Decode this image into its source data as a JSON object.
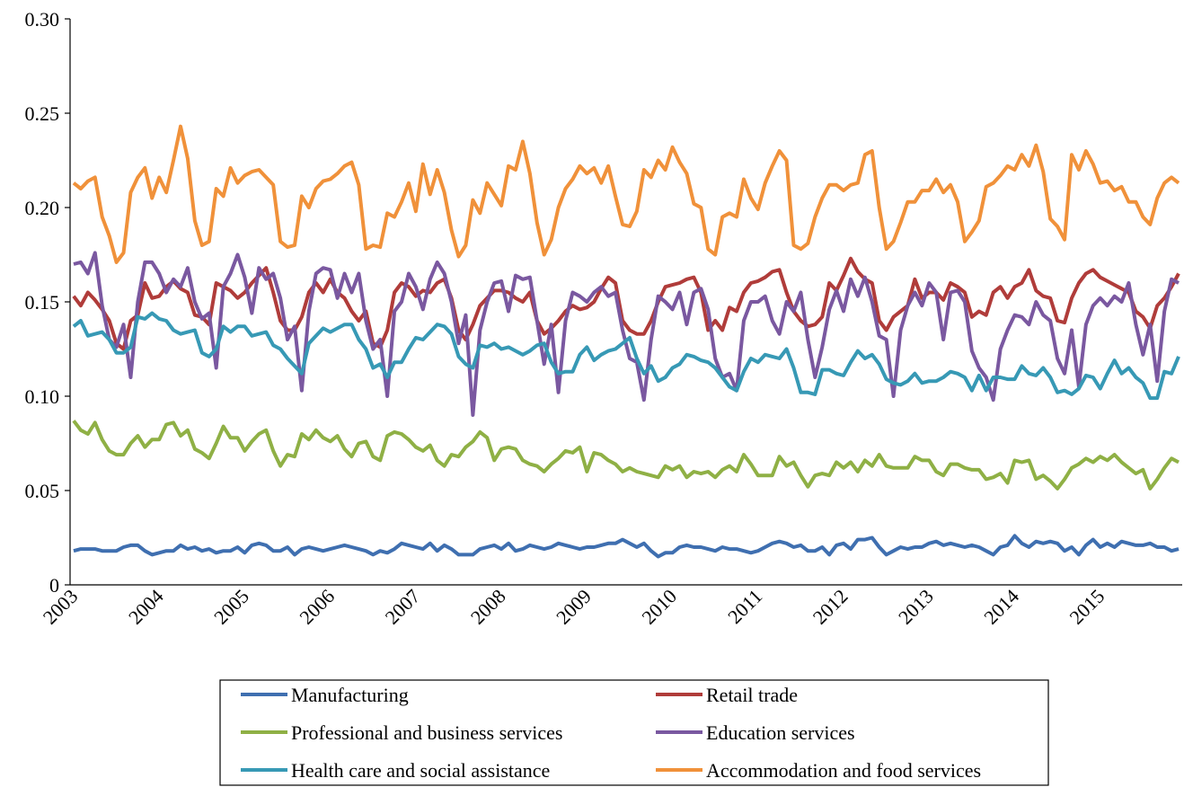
{
  "chart_data": {
    "type": "line",
    "categories": [
      "2003",
      null,
      null,
      null,
      null,
      null,
      null,
      null,
      null,
      null,
      null,
      null,
      "2004",
      null,
      null,
      null,
      null,
      null,
      null,
      null,
      null,
      null,
      null,
      null,
      "2005",
      null,
      null,
      null,
      null,
      null,
      null,
      null,
      null,
      null,
      null,
      null,
      "2006",
      null,
      null,
      null,
      null,
      null,
      null,
      null,
      null,
      null,
      null,
      null,
      "2007",
      null,
      null,
      null,
      null,
      null,
      null,
      null,
      null,
      null,
      null,
      null,
      "2008",
      null,
      null,
      null,
      null,
      null,
      null,
      null,
      null,
      null,
      null,
      null,
      "2009",
      null,
      null,
      null,
      null,
      null,
      null,
      null,
      null,
      null,
      null,
      null,
      "2010",
      null,
      null,
      null,
      null,
      null,
      null,
      null,
      null,
      null,
      null,
      null,
      "2011",
      null,
      null,
      null,
      null,
      null,
      null,
      null,
      null,
      null,
      null,
      null,
      "2012",
      null,
      null,
      null,
      null,
      null,
      null,
      null,
      null,
      null,
      null,
      null,
      "2013",
      null,
      null,
      null,
      null,
      null,
      null,
      null,
      null,
      null,
      null,
      null,
      "2014",
      null,
      null,
      null,
      null,
      null,
      null,
      null,
      null,
      null,
      null,
      null,
      "2015",
      null,
      null,
      null,
      null,
      null,
      null,
      null,
      null,
      null,
      null,
      null
    ],
    "ylim": [
      0,
      0.3
    ],
    "yticks": [
      0,
      0.05,
      {
        "value": 0.1,
        "label": "0.10"
      },
      0.15,
      {
        "value": 0.2,
        "label": "0.20"
      },
      0.25,
      {
        "value": 0.3,
        "label": "0.30"
      }
    ],
    "grid": false,
    "legend": "bottom",
    "series": [
      {
        "name": "Manufacturing",
        "color": "#3f6fb0",
        "values": [
          0.018,
          0.019,
          0.019,
          0.019,
          0.018,
          0.018,
          0.018,
          0.02,
          0.021,
          0.021,
          0.018,
          0.016,
          0.017,
          0.018,
          0.018,
          0.021,
          0.019,
          0.02,
          0.018,
          0.019,
          0.017,
          0.018,
          0.018,
          0.02,
          0.017,
          0.021,
          0.022,
          0.021,
          0.018,
          0.018,
          0.02,
          0.016,
          0.019,
          0.02,
          0.019,
          0.018,
          0.019,
          0.02,
          0.021,
          0.02,
          0.019,
          0.018,
          0.016,
          0.018,
          0.017,
          0.019,
          0.022,
          0.021,
          0.02,
          0.019,
          0.022,
          0.018,
          0.021,
          0.019,
          0.016,
          0.016,
          0.016,
          0.019,
          0.02,
          0.021,
          0.019,
          0.022,
          0.018,
          0.019,
          0.021,
          0.02,
          0.019,
          0.02,
          0.022,
          0.021,
          0.02,
          0.019,
          0.02,
          0.02,
          0.021,
          0.022,
          0.022,
          0.024,
          0.022,
          0.02,
          0.022,
          0.018,
          0.015,
          0.017,
          0.017,
          0.02,
          0.021,
          0.02,
          0.02,
          0.019,
          0.018,
          0.02,
          0.019,
          0.019,
          0.018,
          0.017,
          0.018,
          0.02,
          0.022,
          0.023,
          0.022,
          0.02,
          0.021,
          0.018,
          0.018,
          0.02,
          0.016,
          0.021,
          0.022,
          0.019,
          0.024,
          0.024,
          0.025,
          0.02,
          0.016,
          0.018,
          0.02,
          0.019,
          0.02,
          0.02,
          0.022,
          0.023,
          0.021,
          0.022,
          0.021,
          0.02,
          0.021,
          0.02,
          0.018,
          0.016,
          0.02,
          0.021,
          0.026,
          0.022,
          0.02,
          0.023,
          0.022,
          0.023,
          0.022,
          0.018,
          0.02,
          0.016,
          0.021,
          0.024,
          0.02,
          0.022,
          0.02,
          0.023,
          0.022,
          0.021,
          0.021,
          0.022,
          0.02,
          0.02,
          0.018,
          0.019
        ]
      },
      {
        "name": "Retail trade",
        "color": "#b03c3a",
        "values": [
          0.153,
          0.148,
          0.155,
          0.151,
          0.146,
          0.14,
          0.128,
          0.125,
          0.14,
          0.143,
          0.16,
          0.152,
          0.153,
          0.158,
          0.161,
          0.157,
          0.155,
          0.143,
          0.142,
          0.138,
          0.16,
          0.158,
          0.156,
          0.152,
          0.155,
          0.16,
          0.164,
          0.168,
          0.155,
          0.14,
          0.135,
          0.135,
          0.142,
          0.155,
          0.16,
          0.155,
          0.162,
          0.155,
          0.152,
          0.145,
          0.14,
          0.145,
          0.128,
          0.126,
          0.135,
          0.155,
          0.16,
          0.158,
          0.153,
          0.156,
          0.155,
          0.16,
          0.162,
          0.152,
          0.135,
          0.13,
          0.138,
          0.148,
          0.152,
          0.156,
          0.156,
          0.155,
          0.152,
          0.15,
          0.155,
          0.14,
          0.133,
          0.136,
          0.14,
          0.145,
          0.148,
          0.146,
          0.147,
          0.15,
          0.157,
          0.163,
          0.16,
          0.14,
          0.135,
          0.133,
          0.133,
          0.14,
          0.15,
          0.158,
          0.159,
          0.16,
          0.162,
          0.163,
          0.155,
          0.135,
          0.14,
          0.135,
          0.147,
          0.145,
          0.155,
          0.16,
          0.161,
          0.163,
          0.166,
          0.167,
          0.155,
          0.145,
          0.14,
          0.137,
          0.138,
          0.142,
          0.16,
          0.156,
          0.164,
          0.173,
          0.166,
          0.162,
          0.16,
          0.14,
          0.135,
          0.142,
          0.145,
          0.148,
          0.162,
          0.152,
          0.155,
          0.155,
          0.151,
          0.16,
          0.158,
          0.155,
          0.142,
          0.145,
          0.143,
          0.155,
          0.158,
          0.152,
          0.158,
          0.16,
          0.167,
          0.156,
          0.153,
          0.152,
          0.14,
          0.139,
          0.152,
          0.16,
          0.165,
          0.167,
          0.163,
          0.161,
          0.159,
          0.157,
          0.155,
          0.145,
          0.142,
          0.136,
          0.148,
          0.152,
          0.158,
          0.165
        ]
      },
      {
        "name": "Professional and business services",
        "color": "#8fb045",
        "values": [
          0.087,
          0.082,
          0.08,
          0.086,
          0.077,
          0.071,
          0.069,
          0.069,
          0.075,
          0.079,
          0.073,
          0.077,
          0.077,
          0.085,
          0.086,
          0.079,
          0.082,
          0.072,
          0.07,
          0.067,
          0.075,
          0.084,
          0.078,
          0.078,
          0.071,
          0.076,
          0.08,
          0.082,
          0.071,
          0.063,
          0.069,
          0.068,
          0.08,
          0.077,
          0.082,
          0.078,
          0.076,
          0.079,
          0.072,
          0.068,
          0.075,
          0.076,
          0.068,
          0.066,
          0.079,
          0.081,
          0.08,
          0.077,
          0.073,
          0.071,
          0.074,
          0.066,
          0.063,
          0.069,
          0.068,
          0.073,
          0.076,
          0.081,
          0.078,
          0.066,
          0.072,
          0.073,
          0.072,
          0.066,
          0.064,
          0.063,
          0.06,
          0.064,
          0.067,
          0.071,
          0.07,
          0.073,
          0.06,
          0.07,
          0.069,
          0.066,
          0.064,
          0.06,
          0.062,
          0.06,
          0.059,
          0.058,
          0.057,
          0.063,
          0.061,
          0.063,
          0.057,
          0.06,
          0.059,
          0.06,
          0.057,
          0.061,
          0.063,
          0.06,
          0.069,
          0.064,
          0.058,
          0.058,
          0.058,
          0.068,
          0.063,
          0.065,
          0.058,
          0.052,
          0.058,
          0.059,
          0.058,
          0.065,
          0.062,
          0.065,
          0.06,
          0.066,
          0.063,
          0.069,
          0.063,
          0.062,
          0.062,
          0.062,
          0.068,
          0.066,
          0.066,
          0.06,
          0.058,
          0.064,
          0.064,
          0.062,
          0.061,
          0.061,
          0.056,
          0.057,
          0.059,
          0.054,
          0.066,
          0.065,
          0.066,
          0.056,
          0.058,
          0.055,
          0.051,
          0.056,
          0.062,
          0.064,
          0.067,
          0.065,
          0.068,
          0.066,
          0.069,
          0.065,
          0.062,
          0.059,
          0.061,
          0.051,
          0.056,
          0.062,
          0.067,
          0.065
        ]
      },
      {
        "name": "Education services",
        "color": "#7a58a0",
        "values": [
          0.17,
          0.171,
          0.165,
          0.176,
          0.148,
          0.13,
          0.126,
          0.138,
          0.11,
          0.15,
          0.171,
          0.171,
          0.165,
          0.155,
          0.162,
          0.158,
          0.168,
          0.15,
          0.141,
          0.144,
          0.115,
          0.158,
          0.165,
          0.175,
          0.163,
          0.144,
          0.168,
          0.162,
          0.165,
          0.152,
          0.13,
          0.137,
          0.103,
          0.145,
          0.165,
          0.168,
          0.167,
          0.152,
          0.165,
          0.155,
          0.165,
          0.14,
          0.125,
          0.13,
          0.1,
          0.145,
          0.15,
          0.165,
          0.158,
          0.146,
          0.162,
          0.171,
          0.165,
          0.15,
          0.128,
          0.143,
          0.09,
          0.135,
          0.15,
          0.16,
          0.161,
          0.145,
          0.164,
          0.162,
          0.163,
          0.14,
          0.117,
          0.138,
          0.102,
          0.14,
          0.155,
          0.153,
          0.15,
          0.155,
          0.158,
          0.153,
          0.155,
          0.135,
          0.12,
          0.118,
          0.098,
          0.13,
          0.153,
          0.15,
          0.146,
          0.155,
          0.138,
          0.155,
          0.157,
          0.146,
          0.12,
          0.11,
          0.112,
          0.103,
          0.14,
          0.15,
          0.15,
          0.153,
          0.14,
          0.133,
          0.15,
          0.145,
          0.155,
          0.13,
          0.11,
          0.126,
          0.146,
          0.156,
          0.145,
          0.162,
          0.153,
          0.163,
          0.15,
          0.132,
          0.13,
          0.1,
          0.135,
          0.148,
          0.155,
          0.148,
          0.16,
          0.155,
          0.13,
          0.155,
          0.156,
          0.15,
          0.124,
          0.115,
          0.11,
          0.098,
          0.125,
          0.135,
          0.143,
          0.142,
          0.138,
          0.15,
          0.143,
          0.14,
          0.12,
          0.112,
          0.135,
          0.105,
          0.138,
          0.148,
          0.152,
          0.148,
          0.153,
          0.15,
          0.16,
          0.138,
          0.122,
          0.138,
          0.108,
          0.145,
          0.162,
          0.16
        ]
      },
      {
        "name": "Health care and social assistance",
        "color": "#3799b5",
        "values": [
          0.137,
          0.14,
          0.132,
          0.133,
          0.134,
          0.13,
          0.123,
          0.123,
          0.126,
          0.142,
          0.141,
          0.144,
          0.141,
          0.14,
          0.135,
          0.133,
          0.134,
          0.135,
          0.123,
          0.121,
          0.125,
          0.137,
          0.134,
          0.137,
          0.137,
          0.132,
          0.133,
          0.134,
          0.127,
          0.125,
          0.12,
          0.116,
          0.112,
          0.128,
          0.132,
          0.136,
          0.134,
          0.136,
          0.138,
          0.138,
          0.13,
          0.125,
          0.115,
          0.117,
          0.11,
          0.118,
          0.118,
          0.125,
          0.131,
          0.13,
          0.134,
          0.138,
          0.137,
          0.133,
          0.121,
          0.117,
          0.115,
          0.127,
          0.126,
          0.128,
          0.125,
          0.126,
          0.124,
          0.122,
          0.124,
          0.127,
          0.128,
          0.118,
          0.112,
          0.113,
          0.113,
          0.122,
          0.126,
          0.119,
          0.122,
          0.124,
          0.125,
          0.128,
          0.131,
          0.12,
          0.112,
          0.116,
          0.108,
          0.11,
          0.115,
          0.117,
          0.122,
          0.121,
          0.119,
          0.118,
          0.115,
          0.11,
          0.105,
          0.103,
          0.113,
          0.12,
          0.118,
          0.122,
          0.121,
          0.12,
          0.125,
          0.115,
          0.102,
          0.102,
          0.101,
          0.114,
          0.114,
          0.112,
          0.111,
          0.118,
          0.124,
          0.12,
          0.122,
          0.117,
          0.109,
          0.107,
          0.106,
          0.108,
          0.112,
          0.107,
          0.108,
          0.108,
          0.11,
          0.113,
          0.112,
          0.11,
          0.103,
          0.111,
          0.103,
          0.11,
          0.11,
          0.109,
          0.109,
          0.116,
          0.112,
          0.111,
          0.115,
          0.11,
          0.102,
          0.103,
          0.101,
          0.104,
          0.111,
          0.11,
          0.104,
          0.112,
          0.119,
          0.112,
          0.115,
          0.11,
          0.107,
          0.099,
          0.099,
          0.113,
          0.112,
          0.121
        ]
      },
      {
        "name": "Accommodation and food services",
        "color": "#f0913a",
        "values": [
          0.213,
          0.21,
          0.214,
          0.216,
          0.195,
          0.185,
          0.171,
          0.176,
          0.208,
          0.216,
          0.221,
          0.205,
          0.216,
          0.208,
          0.225,
          0.243,
          0.226,
          0.193,
          0.18,
          0.182,
          0.21,
          0.206,
          0.221,
          0.213,
          0.217,
          0.219,
          0.22,
          0.216,
          0.212,
          0.182,
          0.179,
          0.18,
          0.206,
          0.2,
          0.21,
          0.214,
          0.215,
          0.218,
          0.222,
          0.224,
          0.212,
          0.178,
          0.18,
          0.179,
          0.197,
          0.195,
          0.203,
          0.213,
          0.198,
          0.223,
          0.207,
          0.22,
          0.208,
          0.188,
          0.174,
          0.18,
          0.204,
          0.197,
          0.213,
          0.207,
          0.201,
          0.222,
          0.22,
          0.235,
          0.218,
          0.192,
          0.175,
          0.183,
          0.2,
          0.21,
          0.215,
          0.222,
          0.218,
          0.221,
          0.213,
          0.222,
          0.206,
          0.191,
          0.19,
          0.198,
          0.22,
          0.216,
          0.225,
          0.22,
          0.232,
          0.224,
          0.218,
          0.202,
          0.2,
          0.178,
          0.175,
          0.195,
          0.197,
          0.195,
          0.215,
          0.205,
          0.199,
          0.213,
          0.222,
          0.23,
          0.225,
          0.18,
          0.178,
          0.181,
          0.195,
          0.205,
          0.212,
          0.212,
          0.209,
          0.212,
          0.213,
          0.228,
          0.23,
          0.2,
          0.178,
          0.182,
          0.192,
          0.203,
          0.203,
          0.209,
          0.209,
          0.215,
          0.208,
          0.212,
          0.203,
          0.182,
          0.187,
          0.193,
          0.211,
          0.213,
          0.217,
          0.222,
          0.22,
          0.228,
          0.222,
          0.233,
          0.219,
          0.194,
          0.19,
          0.183,
          0.228,
          0.22,
          0.23,
          0.223,
          0.213,
          0.214,
          0.209,
          0.211,
          0.203,
          0.203,
          0.195,
          0.191,
          0.205,
          0.213,
          0.216,
          0.213
        ]
      }
    ]
  }
}
